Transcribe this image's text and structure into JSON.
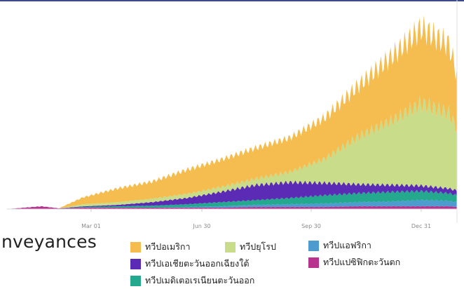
{
  "caption": "nveyances",
  "chart_data": {
    "type": "area",
    "stacked": true,
    "x_ticks": [
      "Mar 01",
      "Jun 30",
      "Sep 30",
      "Dec 31"
    ],
    "ylim": [
      0,
      300
    ],
    "grid": false,
    "legend_position": "bottom",
    "series": [
      {
        "name": "ทวีปแปซิฟิกตะวันตก",
        "color": "#b8328f",
        "points": [
          [
            0,
            0
          ],
          [
            25,
            2
          ],
          [
            50,
            4
          ],
          [
            75,
            1
          ],
          [
            110,
            2
          ],
          [
            160,
            2
          ],
          [
            210,
            2
          ],
          [
            260,
            2
          ],
          [
            310,
            2
          ],
          [
            360,
            3
          ],
          [
            410,
            3
          ],
          [
            460,
            3
          ],
          [
            510,
            4
          ],
          [
            560,
            4
          ],
          [
            600,
            4
          ],
          [
            640,
            4
          ],
          [
            652,
            3
          ]
        ]
      },
      {
        "name": "ทวีปแอฟริกา",
        "color": "#4e9bd0",
        "points": [
          [
            0,
            0
          ],
          [
            75,
            0
          ],
          [
            110,
            0
          ],
          [
            160,
            0
          ],
          [
            210,
            0
          ],
          [
            260,
            1
          ],
          [
            310,
            2
          ],
          [
            360,
            3
          ],
          [
            410,
            4
          ],
          [
            460,
            5
          ],
          [
            510,
            6
          ],
          [
            560,
            7
          ],
          [
            600,
            9
          ],
          [
            640,
            8
          ],
          [
            652,
            7
          ]
        ]
      },
      {
        "name": "ทวีปเมดิเตอเรเนียนตะวันออก",
        "color": "#25a98e",
        "points": [
          [
            0,
            0
          ],
          [
            75,
            0
          ],
          [
            110,
            1
          ],
          [
            160,
            2
          ],
          [
            210,
            3
          ],
          [
            260,
            4
          ],
          [
            310,
            6
          ],
          [
            360,
            7
          ],
          [
            410,
            9
          ],
          [
            460,
            12
          ],
          [
            510,
            13
          ],
          [
            560,
            14
          ],
          [
            600,
            13
          ],
          [
            640,
            11
          ],
          [
            652,
            10
          ]
        ]
      },
      {
        "name": "ทวีปเอเชียตะวันออกเฉียงใต้",
        "color": "#5c2bb5",
        "points": [
          [
            0,
            0
          ],
          [
            75,
            0
          ],
          [
            110,
            1
          ],
          [
            160,
            2
          ],
          [
            210,
            5
          ],
          [
            260,
            9
          ],
          [
            310,
            15
          ],
          [
            360,
            22
          ],
          [
            410,
            23
          ],
          [
            460,
            18
          ],
          [
            510,
            13
          ],
          [
            560,
            10
          ],
          [
            600,
            8
          ],
          [
            640,
            7
          ],
          [
            652,
            7
          ]
        ]
      },
      {
        "name": "ทวีปยุโรป",
        "color": "#c8dc8a",
        "points": [
          [
            0,
            0
          ],
          [
            75,
            0
          ],
          [
            110,
            3
          ],
          [
            160,
            4
          ],
          [
            210,
            5
          ],
          [
            260,
            6
          ],
          [
            310,
            7
          ],
          [
            360,
            9
          ],
          [
            410,
            15
          ],
          [
            460,
            35
          ],
          [
            510,
            70
          ],
          [
            560,
            95
          ],
          [
            600,
            120
          ],
          [
            640,
            110
          ],
          [
            652,
            90
          ]
        ]
      },
      {
        "name": "ทวีปอเมริกา",
        "color": "#f5bd4f",
        "points": [
          [
            0,
            0
          ],
          [
            75,
            0
          ],
          [
            110,
            10
          ],
          [
            160,
            20
          ],
          [
            210,
            25
          ],
          [
            260,
            35
          ],
          [
            310,
            40
          ],
          [
            360,
            45
          ],
          [
            410,
            50
          ],
          [
            460,
            60
          ],
          [
            510,
            75
          ],
          [
            560,
            95
          ],
          [
            600,
            110
          ],
          [
            640,
            100
          ],
          [
            652,
            80
          ]
        ]
      }
    ]
  },
  "legend": [
    {
      "label": "ทวีปอเมริกา",
      "color": "#f5bd4f"
    },
    {
      "label": "ทวีปยุโรป",
      "color": "#c8dc8a"
    },
    {
      "label": "ทวีปแอฟริกา",
      "color": "#4e9bd0"
    },
    {
      "label": "ทวีปเอเชียตะวันออกเฉียงใต้",
      "color": "#5c2bb5"
    },
    {
      "label": "ทวีปแปซิฟิกตะวันตก",
      "color": "#b8328f"
    },
    {
      "label": "ทวีปเมดิเตอเรเนียนตะวันออก",
      "color": "#25a98e"
    }
  ]
}
